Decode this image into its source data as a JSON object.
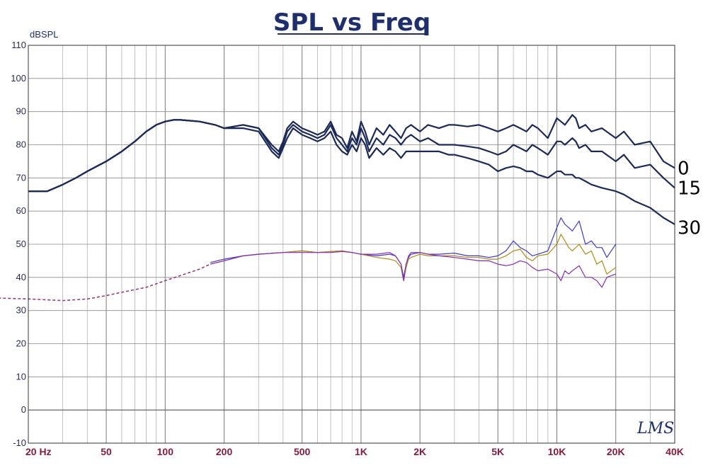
{
  "chart_data": {
    "type": "line",
    "title": "SPL vs Freq",
    "ylabel": "dBSPL",
    "xscale": "log",
    "xlim": [
      20,
      40000
    ],
    "ylim": [
      -10,
      110
    ],
    "grid": true,
    "y_ticks": [
      "110",
      "100",
      "90",
      "80",
      "70",
      "60",
      "50",
      "40",
      "30",
      "20",
      "10",
      "0",
      "-10"
    ],
    "x_tick_labels": [
      {
        "value": 20,
        "label": "20 Hz"
      },
      {
        "value": 50,
        "label": "50"
      },
      {
        "value": 100,
        "label": "100"
      },
      {
        "value": 200,
        "label": "200"
      },
      {
        "value": 500,
        "label": "500"
      },
      {
        "value": 1000,
        "label": "1K"
      },
      {
        "value": 2000,
        "label": "2K"
      },
      {
        "value": 5000,
        "label": "5K"
      },
      {
        "value": 10000,
        "label": "10K"
      },
      {
        "value": 20000,
        "label": "20K"
      },
      {
        "value": 40000,
        "label": "40K"
      }
    ],
    "annotations": [
      {
        "text": "0",
        "y": 73
      },
      {
        "text": "15",
        "y": 67
      },
      {
        "text": "30",
        "y": 55
      }
    ],
    "watermark": "LMS",
    "series": [
      {
        "name": "0",
        "color": "#1c2a5a",
        "x": [
          20,
          25,
          30,
          35,
          40,
          50,
          60,
          70,
          80,
          90,
          100,
          110,
          120,
          150,
          180,
          200,
          250,
          300,
          350,
          380,
          400,
          420,
          450,
          500,
          550,
          600,
          650,
          700,
          750,
          800,
          850,
          900,
          950,
          1000,
          1050,
          1100,
          1200,
          1300,
          1400,
          1500,
          1600,
          1700,
          1800,
          2000,
          2200,
          2500,
          2800,
          3000,
          3500,
          4000,
          4500,
          5000,
          5500,
          6000,
          6500,
          7000,
          7500,
          8000,
          9000,
          10000,
          10500,
          11000,
          12000,
          12500,
          13000,
          14000,
          15000,
          17000,
          20000,
          22000,
          25000,
          30000,
          35000,
          40000
        ],
        "y": [
          66,
          66,
          68,
          70,
          72,
          75,
          78,
          81,
          84,
          86,
          87,
          87.5,
          87.5,
          87,
          86,
          85,
          86,
          85,
          80,
          78,
          81,
          85,
          87,
          85,
          84,
          83,
          84,
          87,
          83,
          82,
          79,
          84,
          81,
          87,
          84,
          80,
          85,
          83,
          86,
          84,
          82,
          85,
          86,
          84,
          86,
          85,
          86,
          86,
          85.5,
          86,
          85,
          84,
          85,
          86,
          85,
          84,
          86,
          85,
          82,
          88,
          87,
          86,
          89,
          88,
          85,
          86,
          84,
          85,
          82,
          84,
          80,
          81,
          75,
          73
        ]
      },
      {
        "name": "15",
        "color": "#1c2a5a",
        "x": [
          20,
          25,
          30,
          35,
          40,
          50,
          60,
          70,
          80,
          90,
          100,
          110,
          120,
          150,
          180,
          200,
          250,
          300,
          350,
          380,
          400,
          420,
          450,
          500,
          550,
          600,
          650,
          700,
          750,
          800,
          850,
          900,
          950,
          1000,
          1050,
          1100,
          1200,
          1300,
          1400,
          1500,
          1600,
          1700,
          1800,
          2000,
          2200,
          2500,
          2800,
          3000,
          3500,
          4000,
          4500,
          5000,
          5500,
          6000,
          6500,
          7000,
          7500,
          8000,
          9000,
          10000,
          10500,
          11000,
          12000,
          12500,
          13000,
          14000,
          15000,
          17000,
          20000,
          22000,
          25000,
          30000,
          35000,
          40000
        ],
        "y": [
          66,
          66,
          68,
          70,
          72,
          75,
          78,
          81,
          84,
          86,
          87,
          87.5,
          87.5,
          87,
          86,
          85,
          86,
          85,
          79,
          77,
          80,
          84,
          86,
          84,
          83,
          82,
          83,
          86,
          82,
          80,
          78,
          82,
          80,
          85,
          82,
          78,
          82,
          80,
          83,
          82,
          80,
          82,
          83,
          81,
          82,
          80,
          80,
          80,
          79.5,
          79,
          78,
          77,
          78,
          80,
          79,
          78,
          80,
          79,
          77,
          81,
          81,
          80,
          82,
          81,
          79,
          80,
          78,
          78,
          75,
          77,
          73,
          74,
          70,
          67
        ]
      },
      {
        "name": "30",
        "color": "#1c2a5a",
        "x": [
          20,
          25,
          30,
          35,
          40,
          50,
          60,
          70,
          80,
          90,
          100,
          110,
          120,
          150,
          180,
          200,
          250,
          300,
          350,
          380,
          400,
          420,
          450,
          500,
          550,
          600,
          650,
          700,
          750,
          800,
          850,
          900,
          950,
          1000,
          1050,
          1100,
          1200,
          1300,
          1400,
          1500,
          1600,
          1700,
          1800,
          2000,
          2200,
          2500,
          2800,
          3000,
          3500,
          4000,
          4500,
          5000,
          5500,
          6000,
          6500,
          7000,
          7500,
          8000,
          9000,
          10000,
          10500,
          11000,
          12000,
          12500,
          13000,
          14000,
          15000,
          17000,
          20000,
          22000,
          25000,
          30000,
          35000,
          40000
        ],
        "y": [
          66,
          66,
          68,
          70,
          72,
          75,
          78,
          81,
          84,
          86,
          87,
          87.5,
          87.5,
          87,
          86,
          85,
          85,
          84,
          78,
          76,
          79,
          82,
          85,
          83,
          82,
          81,
          82,
          84,
          80,
          78,
          77,
          80,
          78,
          82,
          80,
          76,
          79,
          77,
          79,
          78,
          76,
          78,
          78,
          78,
          78,
          78,
          77,
          77,
          76,
          75,
          74,
          72,
          73,
          73.5,
          73,
          72,
          72,
          71,
          70,
          72,
          72,
          71,
          71,
          70,
          70,
          69,
          68,
          67,
          66,
          65,
          63,
          61,
          58,
          56
        ]
      },
      {
        "name": "distortion-blue",
        "color": "#3a3ad0",
        "x": [
          170,
          200,
          250,
          300,
          400,
          500,
          600,
          700,
          800,
          900,
          1000,
          1200,
          1400,
          1500,
          1600,
          1650,
          1700,
          1750,
          1800,
          2000,
          2200,
          2500,
          3000,
          3500,
          4000,
          4500,
          5000,
          5500,
          6000,
          6500,
          7000,
          7500,
          8000,
          9000,
          10000,
          10500,
          11000,
          11500,
          12000,
          13000,
          14000,
          15000,
          16000,
          17000,
          18000,
          20000
        ],
        "y": [
          44.5,
          45.5,
          46.5,
          47,
          47.5,
          48,
          47.5,
          47.8,
          48,
          47.5,
          47,
          46.5,
          47,
          46.5,
          44,
          40,
          44,
          46,
          47,
          47.5,
          47,
          47,
          47.3,
          46.5,
          46.5,
          46,
          46.5,
          48,
          51,
          49,
          48,
          46.5,
          47,
          48,
          55,
          58,
          56,
          55,
          54,
          57,
          50,
          51,
          49,
          49,
          46,
          50
        ]
      },
      {
        "name": "distortion-gold",
        "color": "#b08c10",
        "x": [
          170,
          200,
          250,
          300,
          400,
          500,
          600,
          700,
          800,
          900,
          1000,
          1200,
          1400,
          1500,
          1600,
          1650,
          1700,
          1750,
          1800,
          2000,
          2200,
          2500,
          3000,
          3500,
          4000,
          4500,
          5000,
          5500,
          6000,
          6500,
          7000,
          7500,
          8000,
          9000,
          10000,
          10500,
          11000,
          11500,
          12000,
          13000,
          14000,
          15000,
          16000,
          17000,
          18000,
          20000
        ],
        "y": [
          44,
          45,
          46.5,
          47,
          47.5,
          48,
          47.5,
          47.8,
          48,
          47.5,
          47,
          46,
          45.5,
          45,
          43,
          39,
          43,
          45.5,
          46,
          47,
          46.5,
          46.5,
          46.5,
          46,
          46,
          45.5,
          45.5,
          46.5,
          48,
          48.5,
          46,
          45,
          46.5,
          47,
          50,
          53,
          51,
          49,
          48,
          50,
          47,
          48,
          44,
          45,
          41,
          43
        ]
      },
      {
        "name": "distortion-purple",
        "color": "#8a2ab8",
        "x": [
          0,
          10,
          20,
          30,
          40,
          50,
          60,
          80,
          100,
          150,
          170,
          200,
          250,
          300,
          400,
          500,
          600,
          700,
          800,
          900,
          1000,
          1200,
          1400,
          1500,
          1600,
          1650,
          1700,
          1750,
          1800,
          2000,
          2200,
          2500,
          3000,
          3500,
          4000,
          4500,
          5000,
          5500,
          6000,
          6500,
          7000,
          7500,
          8000,
          9000,
          10000,
          10500,
          11000,
          11500,
          12000,
          13000,
          14000,
          15000,
          16000,
          17000,
          18000,
          20000
        ],
        "y": [
          34.5,
          34,
          33.5,
          33,
          33.5,
          34.5,
          35.5,
          37,
          39,
          42.5,
          44,
          45,
          46.5,
          47,
          47.5,
          47.5,
          47.5,
          47.5,
          47.8,
          47.5,
          47,
          47,
          47.5,
          46.5,
          44,
          39,
          44,
          46.5,
          47.5,
          47.5,
          47,
          46.5,
          46,
          45.5,
          45,
          45,
          44,
          43.5,
          44,
          45,
          44.5,
          43,
          42,
          42.5,
          41,
          39,
          42,
          41,
          42,
          43.5,
          40,
          40,
          39,
          37,
          40,
          41
        ]
      }
    ]
  }
}
